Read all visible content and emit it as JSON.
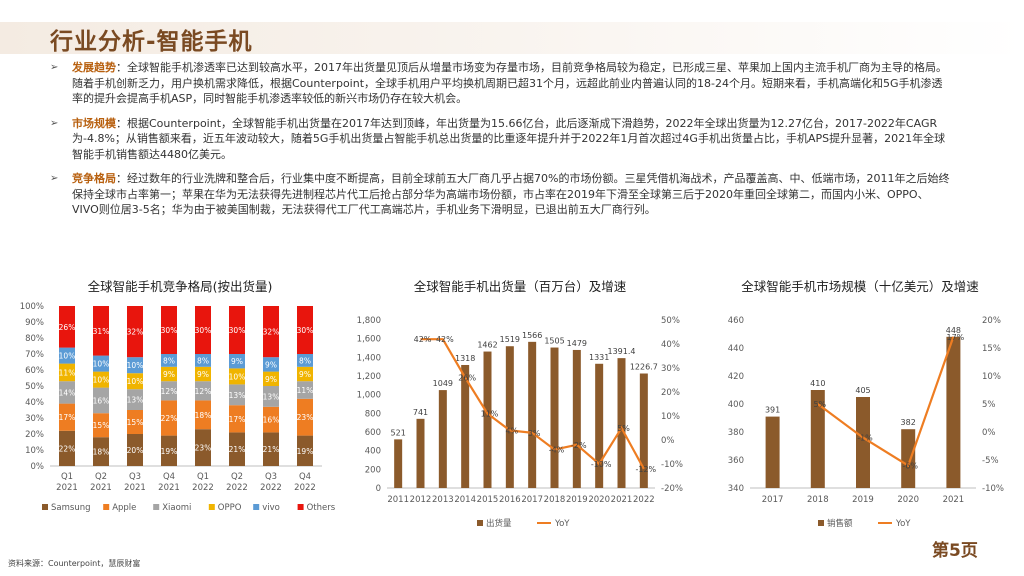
{
  "slide": {
    "title": "行业分析-智能手机",
    "page": "第5页",
    "source": "资料来源：Counterpoint，慧辰财富"
  },
  "bullets": [
    {
      "mark": "➢",
      "head": "发展趋势",
      "text": "：全球智能手机渗透率已达到较高水平，2017年出货量见顶后从增量市场变为存量市场，目前竞争格局较为稳定，已形成三星、苹果加上国内主流手机厂商为主导的格局。随着手机创新乏力，用户换机需求降低，根据Counterpoint，全球手机用户平均换机周期已超31个月，远超此前业内普遍认同的18-24个月。短期来看，手机高端化和5G手机渗透率的提升会提高手机ASP，同时智能手机渗透率较低的新兴市场仍存在较大机会。"
    },
    {
      "mark": "➢",
      "head": "市场规模",
      "text": "：根据Counterpoint，全球智能手机出货量在2017年达到顶峰，年出货量为15.66亿台，此后逐渐成下滑趋势，2022年全球出货量为12.27亿台，2017-2022年CAGR为-4.8%；从销售额来看，近五年波动较大，随着5G手机出货量占智能手机总出货量的比重逐年提升并于2022年1月首次超过4G手机出货量占比，手机APS提升显著，2021年全球智能手机销售额达4480亿美元。"
    },
    {
      "mark": "➢",
      "head": "竞争格局",
      "text": "：经过数年的行业洗牌和整合后，行业集中度不断提高，目前全球前五大厂商几乎占据70%的市场份额。三星凭借机海战术，产品覆盖高、中、低端市场，2011年之后始终保持全球市占率第一；苹果在华为无法获得先进制程芯片代工后抢占部分华为高端市场份额，市占率在2019年下滑至全球第三后于2020年重回全球第二，而国内小米、OPPO、VIVO则位居3-5名；华为由于被美国制裁，无法获得代工厂代工高端芯片，手机业务下滑明显，已退出前五大厂商行列。"
    }
  ],
  "chart_data": [
    {
      "type": "bar",
      "stacked": true,
      "title": "全球智能手机竞争格局(按出货量)",
      "categories": [
        "Q1\n2021",
        "Q2\n2021",
        "Q3\n2021",
        "Q4\n2021",
        "Q1\n2022",
        "Q2\n2022",
        "Q3\n2022",
        "Q4\n2022"
      ],
      "y_ticks": [
        "0%",
        "10%",
        "20%",
        "30%",
        "40%",
        "50%",
        "60%",
        "70%",
        "80%",
        "90%",
        "100%"
      ],
      "ylim": [
        0,
        100
      ],
      "legend_position": "bottom",
      "series": [
        {
          "name": "Samsung",
          "color": "#8b5a2b",
          "values": [
            22,
            18,
            20,
            19,
            23,
            21,
            21,
            19
          ],
          "labels": [
            "22%",
            "18%",
            "20%",
            "19%",
            "23%",
            "21%",
            "21%",
            "19%"
          ]
        },
        {
          "name": "Apple",
          "color": "#ee7d22",
          "values": [
            17,
            15,
            15,
            22,
            18,
            17,
            16,
            23
          ],
          "labels": [
            "17%",
            "15%",
            "15%",
            "22%",
            "18%",
            "17%",
            "16%",
            "23%"
          ]
        },
        {
          "name": "Xiaomi",
          "color": "#a5a5a5",
          "values": [
            14,
            16,
            13,
            12,
            12,
            13,
            13,
            11
          ],
          "labels": [
            "14%",
            "16%",
            "13%",
            "12%",
            "12%",
            "13%",
            "13%",
            "11%"
          ]
        },
        {
          "name": "OPPO",
          "color": "#f0b400",
          "values": [
            11,
            10,
            10,
            9,
            9,
            10,
            9,
            9
          ],
          "labels": [
            "11%",
            "10%",
            "10%",
            "9%",
            "9%",
            "10%",
            "9%",
            "9%"
          ]
        },
        {
          "name": "vivo",
          "color": "#5b9bd5",
          "values": [
            10,
            10,
            10,
            8,
            8,
            9,
            9,
            8
          ],
          "labels": [
            "10%",
            "10%",
            "10%",
            "8%",
            "8%",
            "9%",
            "9%",
            "8%"
          ]
        },
        {
          "name": "Others",
          "color": "#e8150d",
          "values": [
            26,
            31,
            32,
            30,
            30,
            30,
            32,
            30
          ],
          "labels": [
            "26%",
            "31%",
            "32%",
            "30%",
            "30%",
            "30%",
            "32%",
            "30%"
          ]
        }
      ]
    },
    {
      "type": "bar",
      "title": "全球智能手机出货量（百万台）及增速",
      "categories": [
        "2011",
        "2012",
        "2013",
        "2014",
        "2015",
        "2016",
        "2017",
        "2018",
        "2019",
        "2020",
        "2021",
        "2022"
      ],
      "y_left_ticks": [
        "0",
        "200",
        "400",
        "600",
        "800",
        "1,000",
        "1,200",
        "1,400",
        "1,600",
        "1,800"
      ],
      "y_left_lim": [
        0,
        1800
      ],
      "y_right_ticks": [
        "-20%",
        "-10%",
        "0%",
        "10%",
        "20%",
        "30%",
        "40%",
        "50%"
      ],
      "y_right_lim": [
        -20,
        50
      ],
      "legend_position": "bottom",
      "series": [
        {
          "name": "出货量",
          "color": "#8b5a2b",
          "axis": "left",
          "values": [
            521,
            741,
            1049,
            1318,
            1462,
            1519,
            1566,
            1505,
            1479,
            1331,
            1391.4,
            1226.7
          ],
          "labels": [
            "521",
            "741",
            "1049",
            "1318",
            "1462",
            "1519",
            "1566",
            "1505",
            "1479",
            "1331",
            "1391.4",
            "1226.7"
          ]
        },
        {
          "name": "YoY",
          "color": "#ee7d22",
          "axis": "right",
          "type": "line",
          "x": [
            "2012",
            "2013",
            "2014",
            "2015",
            "2016",
            "2017",
            "2018",
            "2019",
            "2020",
            "2021",
            "2022"
          ],
          "values": [
            42,
            42,
            26,
            11,
            4,
            3,
            -4,
            -2,
            -10,
            5,
            -12
          ],
          "labels": [
            "42%",
            "42%",
            "26%",
            "11%",
            "4%",
            "3%",
            "-4%",
            "-2%",
            "-10%",
            "5%",
            "-12%"
          ]
        }
      ]
    },
    {
      "type": "bar",
      "title": "全球智能手机市场规模（十亿美元）及增速",
      "categories": [
        "2017",
        "2018",
        "2019",
        "2020",
        "2021"
      ],
      "y_left_ticks": [
        "340",
        "360",
        "380",
        "400",
        "420",
        "440",
        "460"
      ],
      "y_left_lim": [
        340,
        460
      ],
      "y_right_ticks": [
        "-10%",
        "-5%",
        "0%",
        "5%",
        "10%",
        "15%",
        "20%"
      ],
      "y_right_lim": [
        -10,
        20
      ],
      "legend_position": "bottom",
      "series": [
        {
          "name": "销售额",
          "color": "#8b5a2b",
          "axis": "left",
          "values": [
            391,
            410,
            405,
            382,
            448
          ],
          "labels": [
            "391",
            "410",
            "405",
            "382",
            "448"
          ]
        },
        {
          "name": "YoY",
          "color": "#ee7d22",
          "axis": "right",
          "type": "line",
          "x": [
            "2018",
            "2019",
            "2020",
            "2021"
          ],
          "values": [
            5,
            -1,
            -6,
            17
          ],
          "labels": [
            "5%",
            "-1%",
            "-6%",
            "17%"
          ]
        }
      ]
    }
  ]
}
